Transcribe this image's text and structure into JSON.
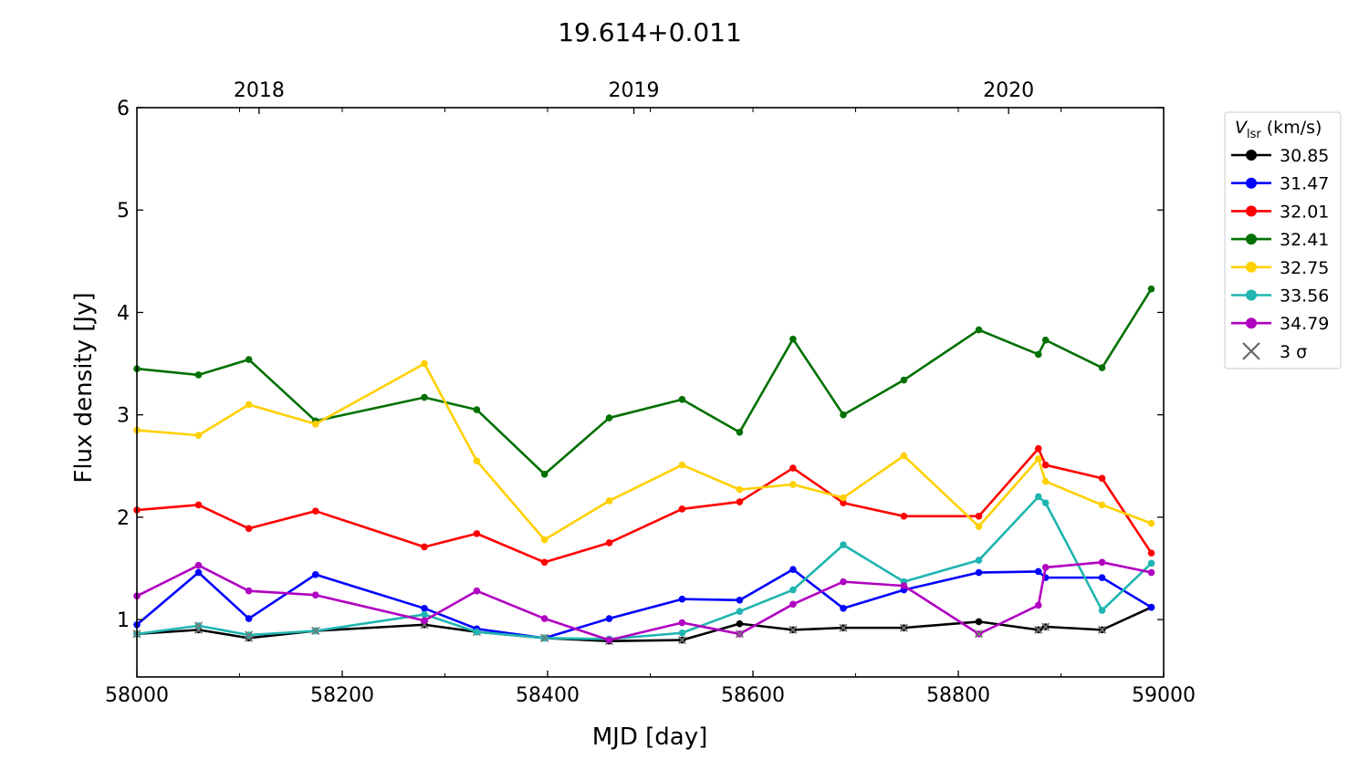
{
  "chart_data": {
    "type": "line",
    "title": "19.614+0.011",
    "xlabel": "MJD [day]",
    "ylabel": "Flux density [Jy]",
    "xlim": [
      58000,
      59000
    ],
    "ylim": [
      0.44,
      6
    ],
    "xticks": [
      58000,
      58200,
      58400,
      58600,
      58800,
      59000
    ],
    "yticks": [
      1,
      2,
      3,
      4,
      5,
      6
    ],
    "top_axis": {
      "ticks": [
        {
          "label": "2018",
          "mjd": 58119
        },
        {
          "label": "2019",
          "mjd": 58484
        },
        {
          "label": "2020",
          "mjd": 58849
        }
      ]
    },
    "grid": false,
    "legend": {
      "title_main": "V",
      "title_sub": "lsr",
      "title_unit": " (km/s)",
      "placement": "outside-right",
      "sigma_label": "3 σ"
    },
    "x": [
      58000,
      58060,
      58109,
      58174,
      58280,
      58331,
      58397,
      58460,
      58531,
      58587,
      58639,
      58688,
      58747,
      58820,
      58878,
      58885,
      58940,
      58988
    ],
    "series": [
      {
        "name": "30.85",
        "color": "#000000",
        "values": [
          0.86,
          0.9,
          0.82,
          0.89,
          0.95,
          0.88,
          0.82,
          0.79,
          0.8,
          0.96,
          0.9,
          0.92,
          0.92,
          0.98,
          0.9,
          0.93,
          0.9,
          1.12
        ],
        "three_sigma": [
          0,
          1,
          2,
          3,
          4,
          5,
          6,
          7,
          8,
          10,
          11,
          12,
          14,
          15,
          16
        ]
      },
      {
        "name": "31.47",
        "color": "#0000ff",
        "values": [
          0.95,
          1.46,
          1.01,
          1.44,
          1.11,
          0.91,
          0.82,
          1.01,
          1.2,
          1.19,
          1.49,
          1.11,
          1.29,
          1.46,
          1.47,
          1.41,
          1.41,
          1.12
        ],
        "three_sigma": []
      },
      {
        "name": "32.01",
        "color": "#ff0000",
        "values": [
          2.07,
          2.12,
          1.89,
          2.06,
          1.71,
          1.84,
          1.56,
          1.75,
          2.08,
          2.15,
          2.48,
          2.14,
          2.01,
          2.01,
          2.67,
          2.51,
          2.38,
          1.65
        ],
        "three_sigma": []
      },
      {
        "name": "32.41",
        "color": "#007000",
        "values": [
          3.45,
          3.39,
          3.54,
          2.94,
          3.17,
          3.05,
          2.42,
          2.97,
          3.15,
          2.83,
          3.74,
          3.0,
          3.34,
          3.83,
          3.59,
          3.73,
          3.46,
          4.23
        ],
        "three_sigma": []
      },
      {
        "name": "32.75",
        "color": "#ffd000",
        "values": [
          2.85,
          2.8,
          3.1,
          2.91,
          3.5,
          2.55,
          1.78,
          2.16,
          2.51,
          2.27,
          2.32,
          2.19,
          2.6,
          1.91,
          2.57,
          2.35,
          2.12,
          1.94
        ],
        "three_sigma": []
      },
      {
        "name": "33.56",
        "color": "#1fb5b0",
        "values": [
          0.86,
          0.94,
          0.85,
          0.89,
          1.05,
          0.88,
          0.82,
          0.81,
          0.87,
          1.08,
          1.29,
          1.73,
          1.37,
          1.58,
          2.2,
          2.14,
          1.09,
          1.55
        ],
        "three_sigma": [
          0,
          1,
          2,
          3,
          6
        ]
      },
      {
        "name": "34.79",
        "color": "#b000c0",
        "values": [
          1.23,
          1.53,
          1.28,
          1.24,
          0.99,
          1.28,
          1.01,
          0.8,
          0.97,
          0.86,
          1.15,
          1.37,
          1.33,
          0.86,
          1.14,
          1.51,
          1.56,
          1.46
        ],
        "three_sigma": [
          9,
          13
        ]
      }
    ]
  }
}
